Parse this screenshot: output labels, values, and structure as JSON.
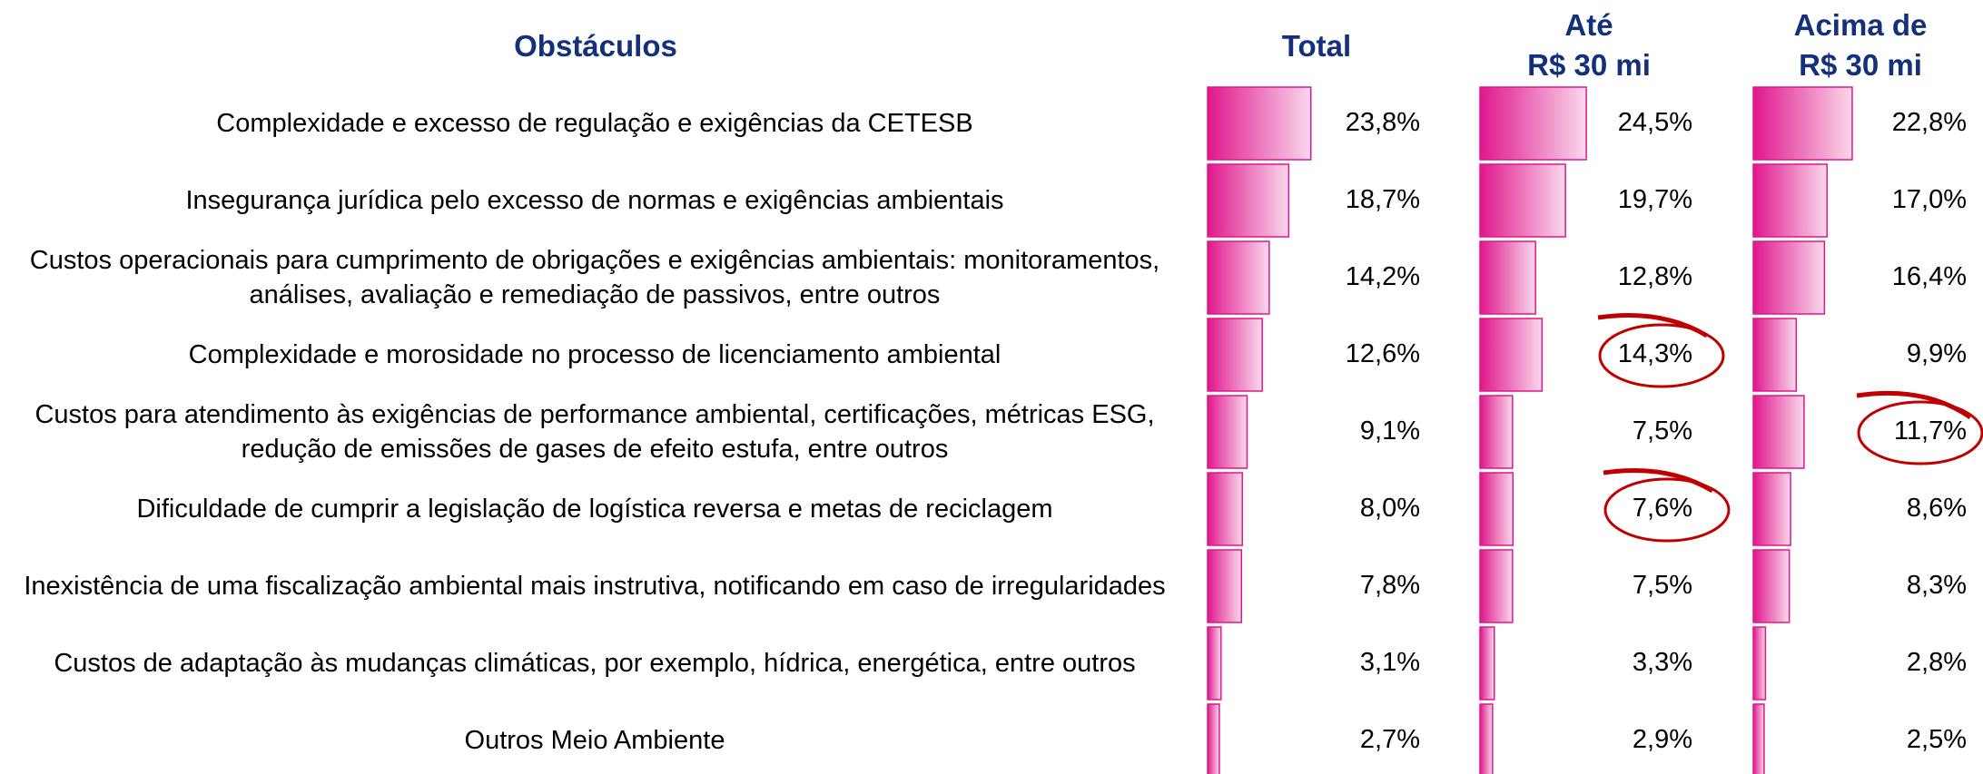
{
  "chart_data": {
    "type": "bar",
    "title": "Obstáculos",
    "categories": [
      "Complexidade e excesso de regulação e exigências da CETESB",
      "Insegurança jurídica pelo excesso de normas e exigências ambientais",
      "Custos operacionais para cumprimento de obrigações e exigências ambientais: monitoramentos, análises, avaliação e remediação de passivos, entre outros",
      "Complexidade e morosidade no processo de licenciamento ambiental",
      "Custos para atendimento às exigências de performance ambiental, certificações, métricas ESG, redução de emissões de gases de efeito estufa, entre outros",
      "Dificuldade de cumprir a legislação de logística reversa e metas de reciclagem",
      "Inexistência de uma fiscalização ambiental mais instrutiva, notificando em caso de irregularidades",
      "Custos de adaptação às mudanças climáticas, por exemplo, hídrica, energética, entre outros",
      "Outros Meio Ambiente"
    ],
    "series": [
      {
        "name": "Total",
        "color": "#e0168c",
        "values": [
          23.8,
          18.7,
          14.2,
          12.6,
          9.1,
          8.0,
          7.8,
          3.1,
          2.7
        ],
        "value_labels": [
          "23,8%",
          "18,7%",
          "14,2%",
          "12,6%",
          "9,1%",
          "8,0%",
          "7,8%",
          "3,1%",
          "2,7%"
        ]
      },
      {
        "name": "Até\nR$ 30 mi",
        "color": "#e0168c",
        "values": [
          24.5,
          19.7,
          12.8,
          14.3,
          7.5,
          7.6,
          7.5,
          3.3,
          2.9
        ],
        "value_labels": [
          "24,5%",
          "19,7%",
          "12,8%",
          "14,3%",
          "7,5%",
          "7,6%",
          "7,5%",
          "3,3%",
          "2,9%"
        ]
      },
      {
        "name": "Acima de\nR$ 30 mi",
        "color": "#e0168c",
        "values": [
          22.8,
          17.0,
          16.4,
          9.9,
          11.7,
          8.6,
          8.3,
          2.8,
          2.5
        ],
        "value_labels": [
          "22,8%",
          "17,0%",
          "16,4%",
          "9,9%",
          "11,7%",
          "8,6%",
          "8,3%",
          "2,8%",
          "2,5%"
        ]
      }
    ]
  }
}
